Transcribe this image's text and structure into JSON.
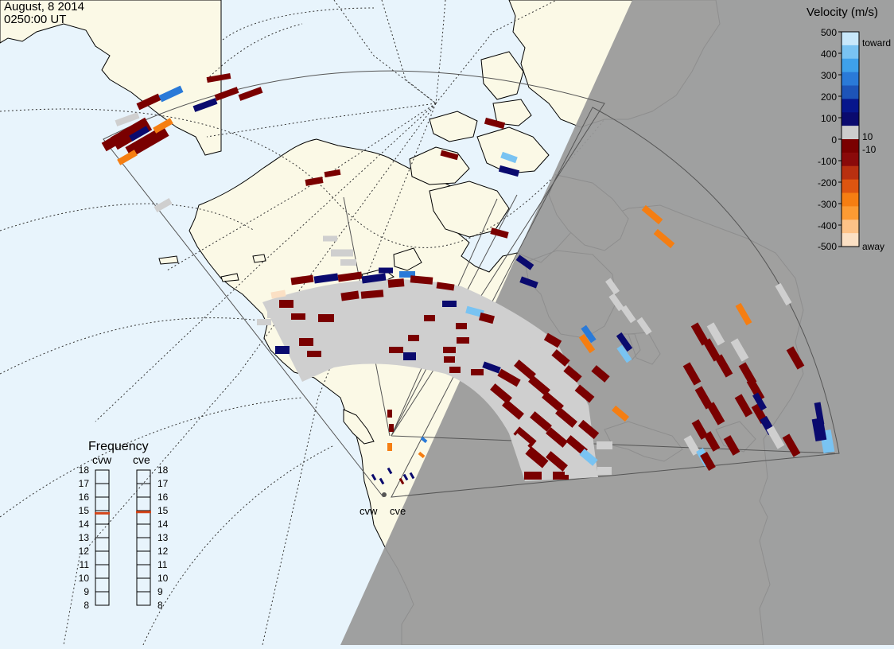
{
  "header": {
    "date": "August, 8 2014",
    "time": "0250:00 UT"
  },
  "colors": {
    "ocean": "#e8f4fc",
    "land": "#fbf9e6",
    "night": "#999999",
    "ground_scatter": "#cfcfcf",
    "fov_outline": "#555555"
  },
  "velocity_scale": {
    "title": "Velocity (m/s)",
    "ticks": [
      "500",
      "400",
      "300",
      "200",
      "100",
      "0",
      "-100",
      "-200",
      "-300",
      "-400",
      "-500"
    ],
    "near_zero_labels": [
      "10",
      "-10"
    ],
    "toward_label": "toward",
    "away_label": "away",
    "colors": [
      "#fbe0c4",
      "#fdc287",
      "#fc9b33",
      "#f57e12",
      "#dd5510",
      "#b83010",
      "#8a0a0a",
      "#7a0000",
      "#cccccc",
      "#0a0a6e",
      "#07168c",
      "#1d54b8",
      "#2a7ad8",
      "#3ea1ea",
      "#79c3f2",
      "#c8e8fb"
    ]
  },
  "frequency_panel": {
    "title": "Frequency",
    "radars": [
      {
        "name": "cvw",
        "frequency_mhz": 14.8
      },
      {
        "name": "cve",
        "frequency_mhz": 14.9
      }
    ],
    "ticks": [
      "18",
      "17",
      "16",
      "15",
      "14",
      "13",
      "12",
      "11",
      "10",
      "9",
      "8"
    ],
    "marker_color": "#d4451a"
  },
  "radar_sites": [
    {
      "name": "cvw"
    },
    {
      "name": "cve"
    }
  ]
}
